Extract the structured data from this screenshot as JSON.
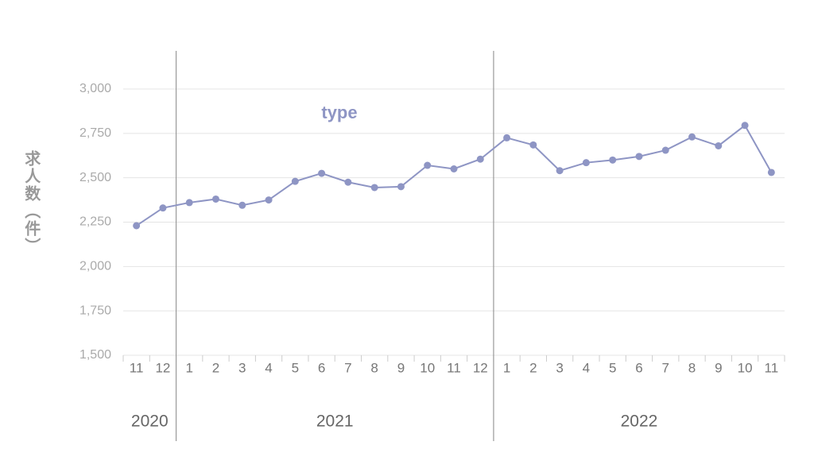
{
  "chart_data": {
    "type": "line",
    "y_label": "求人数（件）",
    "categories": [
      "11",
      "12",
      "1",
      "2",
      "3",
      "4",
      "5",
      "6",
      "7",
      "8",
      "9",
      "10",
      "11",
      "12",
      "1",
      "2",
      "3",
      "4",
      "5",
      "6",
      "7",
      "8",
      "9",
      "10",
      "11"
    ],
    "groups": [
      {
        "label": "2020",
        "size": 2
      },
      {
        "label": "2021",
        "size": 12
      },
      {
        "label": "2022",
        "size": 11
      }
    ],
    "series": [
      {
        "name": "type",
        "color": "#8e95c4",
        "values": [
          2230,
          2330,
          2360,
          2380,
          2345,
          2375,
          2480,
          2525,
          2475,
          2445,
          2450,
          2570,
          2550,
          2605,
          2725,
          2685,
          2540,
          2585,
          2600,
          2620,
          2655,
          2730,
          2680,
          2795,
          2530
        ]
      }
    ],
    "ylim": [
      1500,
      3000
    ],
    "yticks": [
      {
        "value": 1500,
        "label": "1,500"
      },
      {
        "value": 1750,
        "label": "1,750"
      },
      {
        "value": 2000,
        "label": "2,000"
      },
      {
        "value": 2250,
        "label": "2,250"
      },
      {
        "value": 2500,
        "label": "2,500"
      },
      {
        "value": 2750,
        "label": "2,750"
      },
      {
        "value": 3000,
        "label": "3,000"
      }
    ],
    "grid": true
  }
}
